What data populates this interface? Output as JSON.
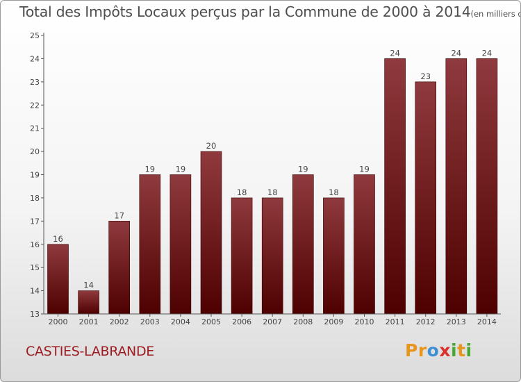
{
  "title": {
    "main": "Total des Impôts Locaux perçus par la Commune de 2000 à 2014",
    "unit": "(en milliers d'€)"
  },
  "commune": "CASTIES-LABRANDE",
  "logo": {
    "text": "Proxiti",
    "letters": [
      {
        "ch": "P",
        "color": "#e8951e"
      },
      {
        "ch": "r",
        "color": "#e8951e"
      },
      {
        "ch": "o",
        "color": "#3f8fd4"
      },
      {
        "ch": "x",
        "color": "#d8322a"
      },
      {
        "ch": "i",
        "color": "#4aa832"
      },
      {
        "ch": "t",
        "color": "#e8951e"
      },
      {
        "ch": "i",
        "color": "#4aa832"
      }
    ]
  },
  "colors": {
    "bar_top": "#8f3a3e",
    "bar_bottom": "#4e0000",
    "axis": "#555555",
    "title": "#4f4f4f",
    "commune": "#9c1c22"
  },
  "chart_data": {
    "type": "bar",
    "categories": [
      "2000",
      "2001",
      "2002",
      "2003",
      "2004",
      "2005",
      "2006",
      "2007",
      "2008",
      "2009",
      "2010",
      "2011",
      "2012",
      "2013",
      "2014"
    ],
    "values": [
      16,
      14,
      17,
      19,
      19,
      20,
      18,
      18,
      19,
      18,
      19,
      24,
      23,
      24,
      24
    ],
    "ylim": [
      13,
      25
    ],
    "yticks": [
      13,
      14,
      15,
      16,
      17,
      18,
      19,
      20,
      21,
      22,
      23,
      24,
      25
    ],
    "data_labels": true,
    "grid": false
  }
}
